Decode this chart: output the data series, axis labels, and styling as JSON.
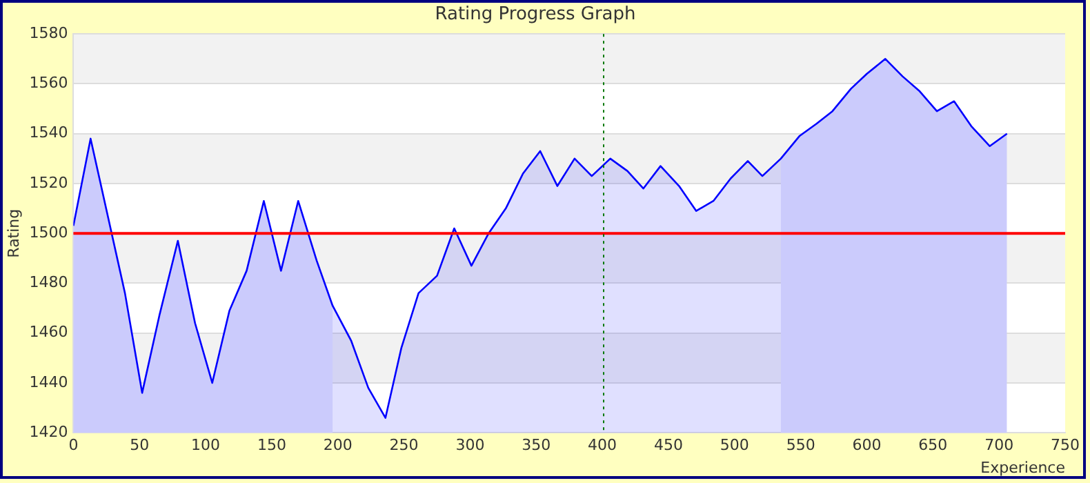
{
  "chart_data": {
    "type": "area",
    "title": "Rating Progress Graph",
    "xlabel": "Experience",
    "ylabel": "Rating",
    "xlim": [
      0,
      750
    ],
    "xticks": [
      0,
      50,
      100,
      150,
      200,
      250,
      300,
      350,
      400,
      450,
      500,
      550,
      600,
      650,
      700,
      750
    ],
    "ylim": [
      1420,
      1580
    ],
    "yticks": [
      1420,
      1440,
      1460,
      1480,
      1500,
      1520,
      1540,
      1560,
      1580
    ],
    "grid": "y",
    "legend": false,
    "marker": "none",
    "line_style": "solid",
    "series": [
      {
        "color": "#0000ff",
        "x": [
          0,
          13,
          39,
          52,
          65,
          79,
          92,
          105,
          118,
          131,
          144,
          157,
          170,
          184,
          196,
          210,
          223,
          236,
          248,
          261,
          275,
          288,
          301,
          314,
          327,
          340,
          353,
          366,
          379,
          392,
          406,
          419,
          431,
          444,
          458,
          471,
          484,
          497,
          510,
          521,
          535,
          549,
          562,
          574,
          588,
          600,
          614,
          627,
          640,
          653,
          666,
          679,
          693,
          706
        ],
        "values": [
          1503,
          1538,
          1476,
          1436,
          1467,
          1497,
          1464,
          1440,
          1469,
          1485,
          1513,
          1485,
          1513,
          1489,
          1471,
          1457,
          1438,
          1426,
          1454,
          1476,
          1483,
          1502,
          1487,
          1500,
          1510,
          1524,
          1533,
          1519,
          1530,
          1523,
          1530,
          1525,
          1518,
          1527,
          1519,
          1509,
          1513,
          1522,
          1529,
          1523,
          1530,
          1539,
          1544,
          1549,
          1558,
          1564,
          1570,
          1563,
          1557,
          1549,
          1553,
          1543,
          1535,
          1540
        ]
      }
    ],
    "bands": [
      {
        "axis": "x",
        "from": 0,
        "to": 196,
        "color": "#e8e8fc"
      },
      {
        "axis": "x",
        "from": 535,
        "to": 706,
        "color": "#e8e8fc"
      }
    ],
    "ref_lines": [
      {
        "axis": "y",
        "value": 1500,
        "color": "#ff0000",
        "line_style": "solid"
      },
      {
        "axis": "x",
        "value": 400,
        "color": "#007700",
        "line_style": "dotted"
      }
    ]
  }
}
